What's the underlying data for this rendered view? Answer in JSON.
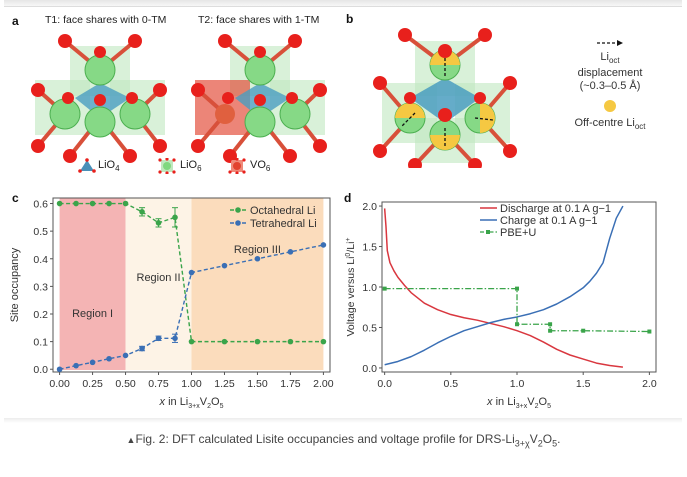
{
  "panels": {
    "a": {
      "letter": "a",
      "title_t1": "T1: face shares with 0-TM",
      "title_t2": "T2: face shares with 1-TM",
      "legend": [
        {
          "label": "LiO",
          "sub": "4",
          "color": "#4a8fb8"
        },
        {
          "label": "LiO",
          "sub": "6",
          "color": "#7fd87f"
        },
        {
          "label": "VO",
          "sub": "6",
          "color": "#e2432f"
        }
      ]
    },
    "b": {
      "letter": "b",
      "arrow_label_main": "Li",
      "arrow_label_sub": "oct",
      "arrow_label_line2": "displacement",
      "arrow_label_line3": "(~0.3–0.5 Å)",
      "offcentre_label_main": "Off-centre Li",
      "offcentre_label_sub": "oct",
      "offcentre_color": "#f5c842"
    },
    "c": {
      "letter": "c"
    },
    "d": {
      "letter": "d"
    }
  },
  "chart_data": [
    {
      "id": "c",
      "type": "line",
      "title": "",
      "xlabel": "x in Li3+xV2O5",
      "ylabel": "Site occupancy",
      "xlim": [
        -0.05,
        2.05
      ],
      "ylim": [
        -0.01,
        0.62
      ],
      "xticks": [
        0.0,
        0.25,
        0.5,
        0.75,
        1.0,
        1.25,
        1.5,
        1.75,
        2.0
      ],
      "xtick_labels": [
        "0.00",
        "0.25",
        "0.50",
        "0.75",
        "1.00",
        "1.25",
        "1.50",
        "1.75",
        "2.00"
      ],
      "yticks": [
        0.0,
        0.1,
        0.2,
        0.3,
        0.4,
        0.5,
        0.6
      ],
      "ytick_labels": [
        "0.0",
        "0.1",
        "0.2",
        "0.3",
        "0.4",
        "0.5",
        "0.6"
      ],
      "regions": [
        {
          "label": "Region I",
          "x": [
            0.0,
            0.5
          ],
          "color": "#f4b4b4"
        },
        {
          "label": "Region II",
          "x": [
            0.5,
            1.0
          ],
          "color": "#fdf3e6"
        },
        {
          "label": "Region III",
          "x": [
            1.0,
            2.0
          ],
          "color": "#fbdcbc"
        }
      ],
      "series": [
        {
          "name": "Octahedral Li",
          "color": "#3aa44a",
          "x": [
            0.0,
            0.125,
            0.25,
            0.375,
            0.5,
            0.625,
            0.75,
            0.875,
            1.0,
            1.25,
            1.5,
            1.75,
            2.0
          ],
          "y": [
            0.6,
            0.6,
            0.6,
            0.6,
            0.6,
            0.57,
            0.53,
            0.55,
            0.1,
            0.1,
            0.1,
            0.1,
            0.1
          ],
          "err": [
            0,
            0,
            0,
            0,
            0,
            0.015,
            0.015,
            0.035,
            0,
            0,
            0,
            0,
            0
          ]
        },
        {
          "name": "Tetrahedral Li",
          "color": "#3a6fb5",
          "x": [
            0.0,
            0.125,
            0.25,
            0.375,
            0.5,
            0.625,
            0.75,
            0.875,
            1.0,
            1.25,
            1.5,
            1.75,
            2.0
          ],
          "y": [
            0.0,
            0.013,
            0.025,
            0.038,
            0.05,
            0.075,
            0.112,
            0.112,
            0.35,
            0.375,
            0.4,
            0.425,
            0.45
          ],
          "err": [
            0,
            0,
            0,
            0,
            0,
            0.008,
            0.008,
            0.015,
            0,
            0,
            0,
            0,
            0
          ]
        }
      ],
      "legend_position": "top-right"
    },
    {
      "id": "d",
      "type": "line",
      "title": "",
      "xlabel": "x in Li3+xV2O5",
      "ylabel": "Voltage versus Li0/Li+",
      "xlim": [
        -0.02,
        2.05
      ],
      "ylim": [
        -0.05,
        2.05
      ],
      "xticks": [
        0.0,
        0.5,
        1.0,
        1.5,
        2.0
      ],
      "xtick_labels": [
        "0.0",
        "0.5",
        "1.0",
        "1.5",
        "2.0"
      ],
      "yticks": [
        0.0,
        0.5,
        1.0,
        1.5,
        2.0
      ],
      "ytick_labels": [
        "0.0",
        "0.5",
        "1.0",
        "1.5",
        "2.0"
      ],
      "series": [
        {
          "name": "Discharge at 0.1 A g−1",
          "color": "#d9373f",
          "style": "solid",
          "x": [
            0.0,
            0.01,
            0.02,
            0.04,
            0.07,
            0.1,
            0.15,
            0.2,
            0.3,
            0.4,
            0.5,
            0.6,
            0.7,
            0.8,
            0.9,
            1.0,
            1.1,
            1.2,
            1.3,
            1.4,
            1.5,
            1.6,
            1.7,
            1.8
          ],
          "y": [
            1.97,
            1.75,
            1.45,
            1.3,
            1.2,
            1.12,
            1.02,
            0.93,
            0.8,
            0.72,
            0.66,
            0.62,
            0.59,
            0.55,
            0.51,
            0.46,
            0.4,
            0.32,
            0.23,
            0.16,
            0.11,
            0.06,
            0.03,
            0.01
          ]
        },
        {
          "name": "Charge at 0.1 A g−1",
          "color": "#3a6fb5",
          "style": "solid",
          "x": [
            0.0,
            0.1,
            0.2,
            0.3,
            0.4,
            0.5,
            0.6,
            0.7,
            0.8,
            0.9,
            1.0,
            1.1,
            1.2,
            1.3,
            1.4,
            1.5,
            1.55,
            1.6,
            1.65,
            1.7,
            1.75,
            1.8
          ],
          "y": [
            0.04,
            0.08,
            0.14,
            0.22,
            0.31,
            0.39,
            0.46,
            0.51,
            0.56,
            0.6,
            0.63,
            0.67,
            0.72,
            0.79,
            0.88,
            0.99,
            1.07,
            1.17,
            1.3,
            1.6,
            1.85,
            2.0
          ]
        },
        {
          "name": "PBE+U",
          "color": "#3aa44a",
          "style": "dashdot-step",
          "x": [
            0.0,
            1.0,
            1.0,
            1.25,
            1.25,
            1.5,
            2.0
          ],
          "y": [
            0.98,
            0.98,
            0.54,
            0.54,
            0.46,
            0.46,
            0.45
          ],
          "markers_x": [
            0.0,
            1.0,
            1.0,
            1.25,
            1.25,
            1.5,
            2.0
          ],
          "markers_y": [
            0.98,
            0.98,
            0.54,
            0.54,
            0.46,
            0.46,
            0.45
          ]
        }
      ],
      "legend_position": "top-right"
    }
  ],
  "caption": {
    "marker": "▲",
    "prefix": "Fig. 2: DFT calculated Lisite occupancies and voltage profile for DRS-Li",
    "sub1": "3+χ",
    "mid": "V",
    "sub2": "2",
    "o": "O",
    "sub3": "5",
    "end": "."
  }
}
